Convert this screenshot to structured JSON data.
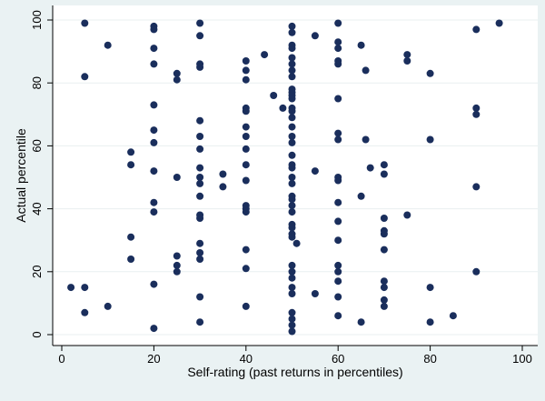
{
  "colors": {
    "background": "#eaf2f3",
    "plot_background": "#ffffff",
    "marker": "#1a2e5c",
    "axis": "#000000",
    "grid": "#e9eff0"
  },
  "chart_data": {
    "type": "scatter",
    "xlabel": "Self-rating (past returns in percentiles)",
    "ylabel": "Actual percentile",
    "xlim": [
      0,
      100
    ],
    "ylim": [
      0,
      100
    ],
    "x_ticks": [
      "0",
      "20",
      "40",
      "60",
      "80",
      "100"
    ],
    "y_ticks": [
      "0",
      "20",
      "40",
      "60",
      "80",
      "100"
    ],
    "grid": "horizontal",
    "legend": "none",
    "points": [
      [
        2,
        15
      ],
      [
        5,
        99
      ],
      [
        5,
        82
      ],
      [
        5,
        15
      ],
      [
        5,
        7
      ],
      [
        10,
        92
      ],
      [
        10,
        9
      ],
      [
        15,
        58
      ],
      [
        15,
        54
      ],
      [
        15,
        31
      ],
      [
        15,
        24
      ],
      [
        20,
        98
      ],
      [
        20,
        97
      ],
      [
        20,
        91
      ],
      [
        20,
        86
      ],
      [
        20,
        73
      ],
      [
        20,
        65
      ],
      [
        20,
        61
      ],
      [
        20,
        52
      ],
      [
        20,
        42
      ],
      [
        20,
        39
      ],
      [
        20,
        16
      ],
      [
        20,
        2
      ],
      [
        25,
        83
      ],
      [
        25,
        81
      ],
      [
        25,
        50
      ],
      [
        25,
        25
      ],
      [
        25,
        22
      ],
      [
        25,
        20
      ],
      [
        30,
        99
      ],
      [
        30,
        95
      ],
      [
        30,
        86
      ],
      [
        30,
        85
      ],
      [
        30,
        68
      ],
      [
        30,
        63
      ],
      [
        30,
        59
      ],
      [
        30,
        53
      ],
      [
        30,
        50
      ],
      [
        30,
        48
      ],
      [
        30,
        44
      ],
      [
        30,
        38
      ],
      [
        30,
        37
      ],
      [
        30,
        29
      ],
      [
        30,
        26
      ],
      [
        30,
        24
      ],
      [
        30,
        12
      ],
      [
        30,
        4
      ],
      [
        35,
        51
      ],
      [
        35,
        47
      ],
      [
        40,
        87
      ],
      [
        40,
        84
      ],
      [
        40,
        81
      ],
      [
        40,
        72
      ],
      [
        40,
        71
      ],
      [
        40,
        66
      ],
      [
        40,
        63
      ],
      [
        40,
        59
      ],
      [
        40,
        54
      ],
      [
        40,
        49
      ],
      [
        40,
        41
      ],
      [
        40,
        40
      ],
      [
        40,
        39
      ],
      [
        40,
        27
      ],
      [
        40,
        21
      ],
      [
        40,
        9
      ],
      [
        44,
        89
      ],
      [
        46,
        76
      ],
      [
        48,
        72
      ],
      [
        50,
        98
      ],
      [
        50,
        96
      ],
      [
        50,
        92
      ],
      [
        50,
        91
      ],
      [
        50,
        88
      ],
      [
        50,
        86
      ],
      [
        50,
        84
      ],
      [
        50,
        82
      ],
      [
        50,
        78
      ],
      [
        50,
        77
      ],
      [
        50,
        76
      ],
      [
        50,
        75
      ],
      [
        50,
        72
      ],
      [
        50,
        71
      ],
      [
        50,
        69
      ],
      [
        50,
        66
      ],
      [
        50,
        63
      ],
      [
        50,
        61
      ],
      [
        50,
        57
      ],
      [
        50,
        54
      ],
      [
        50,
        53
      ],
      [
        50,
        50
      ],
      [
        50,
        48
      ],
      [
        50,
        44
      ],
      [
        50,
        43
      ],
      [
        50,
        41
      ],
      [
        50,
        39
      ],
      [
        50,
        35
      ],
      [
        50,
        34
      ],
      [
        50,
        32
      ],
      [
        50,
        31
      ],
      [
        50,
        22
      ],
      [
        50,
        20
      ],
      [
        50,
        18
      ],
      [
        50,
        15
      ],
      [
        50,
        13
      ],
      [
        50,
        7
      ],
      [
        50,
        5
      ],
      [
        50,
        3
      ],
      [
        50,
        1
      ],
      [
        51,
        29
      ],
      [
        55,
        95
      ],
      [
        55,
        52
      ],
      [
        55,
        13
      ],
      [
        60,
        99
      ],
      [
        60,
        93
      ],
      [
        60,
        91
      ],
      [
        60,
        87
      ],
      [
        60,
        86
      ],
      [
        60,
        75
      ],
      [
        60,
        64
      ],
      [
        60,
        62
      ],
      [
        60,
        50
      ],
      [
        60,
        49
      ],
      [
        60,
        42
      ],
      [
        60,
        36
      ],
      [
        60,
        30
      ],
      [
        60,
        22
      ],
      [
        60,
        20
      ],
      [
        60,
        17
      ],
      [
        60,
        12
      ],
      [
        60,
        6
      ],
      [
        65,
        92
      ],
      [
        65,
        44
      ],
      [
        65,
        4
      ],
      [
        66,
        84
      ],
      [
        66,
        62
      ],
      [
        67,
        53
      ],
      [
        70,
        54
      ],
      [
        70,
        51
      ],
      [
        70,
        37
      ],
      [
        70,
        33
      ],
      [
        70,
        32
      ],
      [
        70,
        27
      ],
      [
        70,
        17
      ],
      [
        70,
        15
      ],
      [
        70,
        11
      ],
      [
        70,
        9
      ],
      [
        75,
        89
      ],
      [
        75,
        87
      ],
      [
        75,
        38
      ],
      [
        80,
        83
      ],
      [
        80,
        62
      ],
      [
        80,
        15
      ],
      [
        80,
        4
      ],
      [
        85,
        6
      ],
      [
        90,
        97
      ],
      [
        90,
        72
      ],
      [
        90,
        70
      ],
      [
        90,
        47
      ],
      [
        90,
        20
      ],
      [
        95,
        99
      ]
    ]
  }
}
